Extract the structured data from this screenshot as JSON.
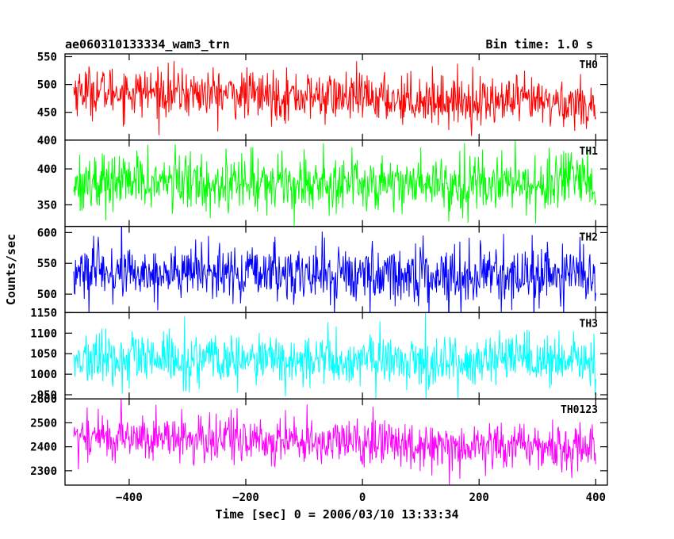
{
  "header": {
    "title": "ae060310133334_wam3_trn",
    "bin_time": "Bin time: 1.0 s"
  },
  "chart_data": {
    "type": "line",
    "xlabel": "Time [sec] 0 = 2006/03/10 13:33:34",
    "ylabel": "Counts/sec",
    "xlim": [
      -510,
      420
    ],
    "x_range": [
      -495,
      400
    ],
    "x_step": 1,
    "x_ticks": [
      -400,
      -200,
      0,
      200,
      400
    ],
    "x_tick_labels": [
      "−400",
      "−200",
      "0",
      "200",
      "400"
    ],
    "grid": false,
    "panels": [
      {
        "name": "TH0",
        "color": "#ff0000",
        "ylim": [
          400,
          555
        ],
        "yticks": [
          400,
          450,
          500,
          550
        ],
        "mean_start": 490,
        "mean_end": 465,
        "noise": 22
      },
      {
        "name": "TH1",
        "color": "#00ff00",
        "ylim": [
          320,
          440
        ],
        "yticks": [
          350,
          400
        ],
        "mean_start": 382,
        "mean_end": 380,
        "noise": 20
      },
      {
        "name": "TH2",
        "color": "#0000ff",
        "ylim": [
          470,
          610
        ],
        "yticks": [
          500,
          550,
          600
        ],
        "mean_start": 535,
        "mean_end": 530,
        "noise": 23
      },
      {
        "name": "TH3",
        "color": "#00ffff",
        "ylim": [
          940,
          1150
        ],
        "yticks": [
          950,
          1000,
          1050,
          1100,
          1150
        ],
        "mean_start": 1035,
        "mean_end": 1030,
        "noise": 32
      },
      {
        "name": "TH0123",
        "color": "#ff00ff",
        "ylim": [
          2240,
          2600
        ],
        "yticks": [
          2300,
          2400,
          2500,
          2600
        ],
        "mean_start": 2445,
        "mean_end": 2395,
        "noise": 50
      }
    ]
  }
}
